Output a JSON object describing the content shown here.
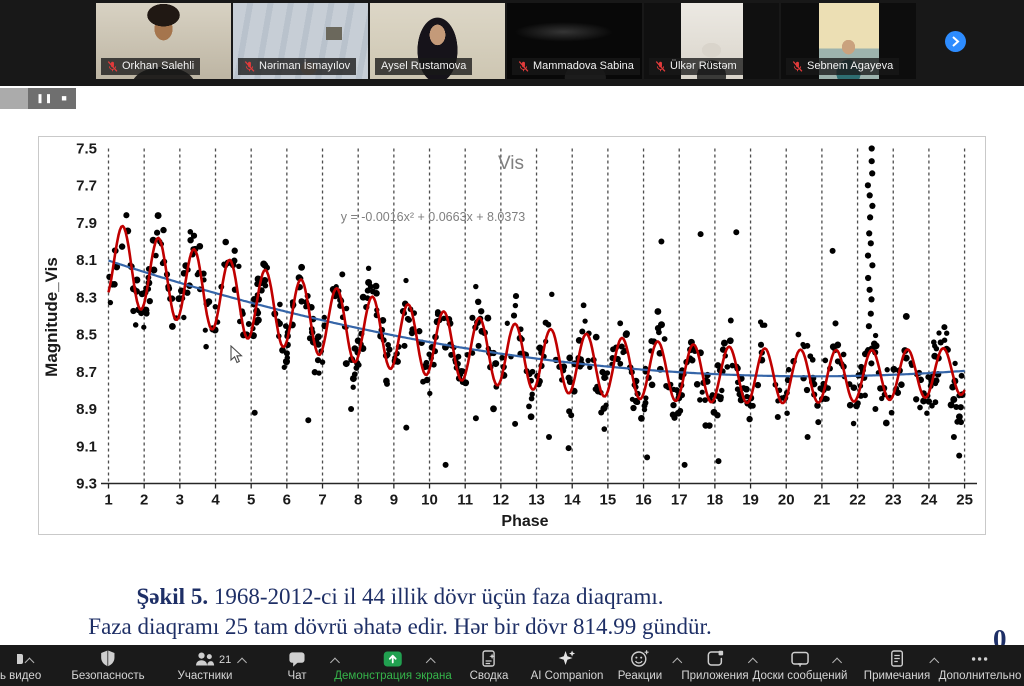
{
  "meeting": {
    "participants": [
      {
        "name": "Orkhan Salehli",
        "muted": true,
        "active": false
      },
      {
        "name": "Nəriman İsmayılov",
        "muted": true,
        "active": false
      },
      {
        "name": "Aysel Rustamova",
        "muted": false,
        "active": true
      },
      {
        "name": "Mammadova Sabina",
        "muted": true,
        "active": false
      },
      {
        "name": "Ülkər Rüstəm",
        "muted": true,
        "active": false
      },
      {
        "name": "Sebnem Agayeva",
        "muted": true,
        "active": false
      }
    ]
  },
  "playback": {
    "pause_glyph": "❚❚",
    "stop_glyph": "■"
  },
  "chart_data": {
    "type": "scatter",
    "title": "Vis",
    "equation": "y = -0.0016x² + 0.0663x + 8.0373",
    "xlabel": "Phase",
    "ylabel": "Magnitude_Vis",
    "x_ticks": [
      1,
      2,
      3,
      4,
      5,
      6,
      7,
      8,
      9,
      10,
      11,
      12,
      13,
      14,
      15,
      16,
      17,
      18,
      19,
      20,
      21,
      22,
      23,
      24,
      25
    ],
    "y_ticks": [
      7.5,
      7.7,
      7.9,
      8.1,
      8.3,
      8.5,
      8.7,
      8.9,
      9.1,
      9.3
    ],
    "xlim": [
      1,
      25
    ],
    "ylim": [
      7.5,
      9.3
    ],
    "y_axis_inverted": true,
    "grid": "vertical-dashed",
    "trend_poly": {
      "a": -0.0016,
      "b": 0.0663,
      "c": 8.0373
    },
    "oscillation": {
      "amplitude_start": 0.215,
      "amplitude_slope": -0.0035,
      "period": 1,
      "peak_phase": 0.4
    },
    "scatter": {
      "count": 620,
      "noise_sigma": 0.08,
      "seed": 42,
      "point_radius": 3
    },
    "outlier_column": {
      "x": 22.35,
      "mag_top": 7.5,
      "mag_bottom": 8.45,
      "count": 16
    },
    "extra_outliers": [
      [
        5.1,
        8.92
      ],
      [
        6.6,
        8.96
      ],
      [
        7.8,
        8.9
      ],
      [
        9.35,
        9.0
      ],
      [
        10.45,
        9.2
      ],
      [
        11.3,
        8.95
      ],
      [
        12.4,
        8.98
      ],
      [
        13.35,
        9.05
      ],
      [
        13.9,
        9.11
      ],
      [
        16.1,
        9.16
      ],
      [
        17.15,
        9.2
      ],
      [
        18.1,
        9.18
      ],
      [
        20.6,
        9.05
      ],
      [
        20.9,
        8.97
      ],
      [
        22.5,
        8.9
      ],
      [
        24.7,
        9.05
      ],
      [
        24.85,
        9.15
      ],
      [
        24.9,
        8.97
      ],
      [
        17.6,
        7.96
      ],
      [
        18.6,
        7.95
      ],
      [
        16.5,
        8.0
      ],
      [
        21.3,
        8.05
      ]
    ],
    "series_colors": {
      "points": "#000000",
      "fit_curve": "#c00000",
      "trend_line": "#3565a8"
    }
  },
  "caption": {
    "label": "Şəkil 5.",
    "line1_rest": " 1968-2012-ci il  44 illik  dövr üçün faza diaqramı.",
    "line2": "Faza diaqramı 25 tam dövrü əhatə edir. Hər bir dövr 814.99 gündür."
  },
  "page_number": "0",
  "toolbar": {
    "items": [
      {
        "label": "ь видео",
        "icon": "camera",
        "caret": true,
        "slug": "stop-video"
      },
      {
        "label": "Безопасность",
        "icon": "shield",
        "slug": "security"
      },
      {
        "label": "Участники",
        "icon": "participants",
        "badge": "21",
        "caret": true,
        "slug": "participants"
      },
      {
        "label": "Чат",
        "icon": "chat",
        "caret": true,
        "slug": "chat"
      },
      {
        "label": "Демонстрация экрана",
        "icon": "share-screen",
        "caret": true,
        "accent": true,
        "slug": "share-screen"
      },
      {
        "label": "Сводка",
        "icon": "summary",
        "slug": "summary"
      },
      {
        "label": "AI Companion",
        "icon": "ai-companion",
        "slug": "ai-companion"
      },
      {
        "label": "Реакции",
        "icon": "reactions",
        "caret": true,
        "slug": "reactions"
      },
      {
        "label": "Приложения",
        "icon": "apps",
        "caret": true,
        "slug": "apps"
      },
      {
        "label": "Доски сообщений",
        "icon": "whiteboards",
        "caret": true,
        "slug": "whiteboards"
      },
      {
        "label": "Примечания",
        "icon": "notes",
        "caret": true,
        "slug": "notes"
      },
      {
        "label": "Дополнительно",
        "icon": "more",
        "slug": "more"
      }
    ]
  },
  "colors": {
    "share_green": "#21a050",
    "accent_green": "#35b44a",
    "zoom_blue": "#2d8cff",
    "caption_navy": "#1e2f66"
  }
}
